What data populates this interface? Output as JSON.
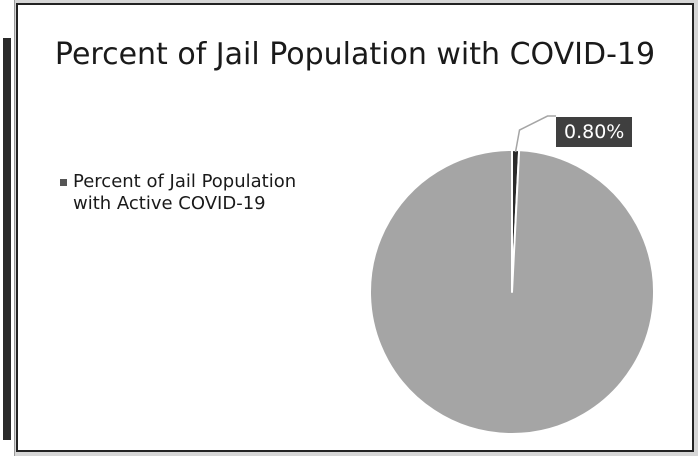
{
  "chart_data": {
    "type": "pie",
    "title": "Percent of Jail Population with COVID-19",
    "legend": {
      "position": "left",
      "entries": [
        "Percent of Jail Population with Active COVID-19"
      ]
    },
    "slices": [
      {
        "name": "Percent of Jail Population with Active COVID-19",
        "value": 0.8,
        "label": "0.80%",
        "color": "#2b2b2b"
      },
      {
        "name": "",
        "value": 99.2,
        "label": "",
        "color": "#a5a5a5"
      }
    ],
    "colors": {
      "background": "#ffffff",
      "slice_border": "#ffffff",
      "label_bg": "#3f3f3f",
      "leader": "#a5a5a5"
    }
  }
}
